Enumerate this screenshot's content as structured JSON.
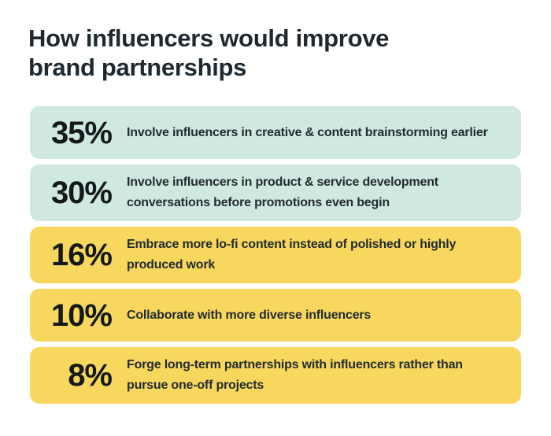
{
  "title": {
    "lines": [
      "How influencers would improve",
      "brand partnerships"
    ]
  },
  "colors": {
    "background": "#ffffff",
    "mint": "#cfe8e0",
    "yellow": "#f8d75e",
    "title_text": "#1d2830",
    "body_text": "#222c30"
  },
  "rows": [
    {
      "percent": "35%",
      "color": "#cfe8e0",
      "label_lines": [
        "Involve influencers in creative & content brainstorming earlier",
        ""
      ]
    },
    {
      "percent": "30%",
      "color": "#cfe8e0",
      "label_lines": [
        "Involve influencers in product & service development",
        "conversations before promotions even begin"
      ]
    },
    {
      "percent": "16%",
      "color": "#f8d75e",
      "label_lines": [
        "Embrace more lo-fi content instead of polished or highly",
        "produced work"
      ]
    },
    {
      "percent": "10%",
      "color": "#f8d75e",
      "label_lines": [
        "Collaborate with more diverse influencers",
        ""
      ]
    },
    {
      "percent": "8%",
      "color": "#f8d75e",
      "label_lines": [
        "Forge long-term partnerships with influencers rather than",
        "pursue one-off projects"
      ]
    }
  ],
  "chart_data": {
    "type": "bar",
    "orientation": "horizontal",
    "title": "How influencers would improve brand partnerships",
    "categories": [
      "Involve influencers in creative & content brainstorming earlier",
      "Involve influencers in product & service development conversations before promotions even begin",
      "Embrace more lo-fi content instead of polished or highly produced work",
      "Collaborate with more diverse influencers",
      "Forge long-term partnerships with influencers rather than pursue one-off projects"
    ],
    "values": [
      35,
      30,
      16,
      10,
      8
    ],
    "unit": "%",
    "bar_colors": [
      "#cfe8e0",
      "#cfe8e0",
      "#f8d75e",
      "#f8d75e",
      "#f8d75e"
    ],
    "legend": false,
    "grid": false
  }
}
